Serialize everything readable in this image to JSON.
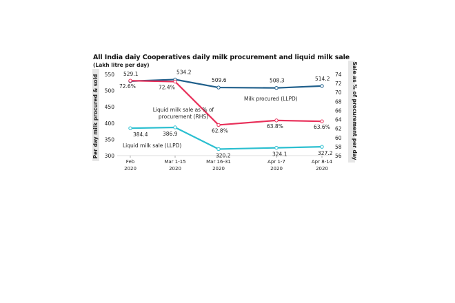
{
  "chart_data": {
    "type": "line",
    "title": "All India daiy Cooperatives daily milk procurement and liquid milk sale",
    "subtitle": "(Lakh litre per day)",
    "ylabel": "Per day milk procured & sold",
    "y2label": "Sale as % of procurement per day",
    "categories": [
      "Feb\n2020",
      "Mar 1-15\n2020",
      "Mar 16-31\n2020",
      "Apr 1-7\n2020",
      "Apr 8-14\n2020"
    ],
    "ylim": [
      300,
      550
    ],
    "yticks": [
      300,
      350,
      400,
      450,
      500,
      550
    ],
    "y2lim": [
      56,
      74
    ],
    "y2ticks": [
      56,
      58,
      60,
      62,
      64,
      66,
      68,
      70,
      72,
      74
    ],
    "series": [
      {
        "name": "Milk procured (LLPD)",
        "axis": "left",
        "color": "#1f5f8b",
        "values": [
          529.1,
          534.2,
          509.6,
          508.3,
          514.2
        ],
        "labels": [
          "529.1",
          "534.2",
          "509.6",
          "508.3",
          "514.2"
        ]
      },
      {
        "name": "Liquid milk sale as % of procurement (RHS)",
        "axis": "right",
        "color": "#e8305a",
        "values": [
          72.6,
          72.4,
          62.8,
          63.8,
          63.6
        ],
        "labels": [
          "72.6%",
          "72.4%",
          "62.8%",
          "63.8%",
          "63.6%"
        ]
      },
      {
        "name": "Liquid milk sale (LLPD)",
        "axis": "left",
        "color": "#2bbfd0",
        "values": [
          384.4,
          386.9,
          320.2,
          324.1,
          327.2
        ],
        "labels": [
          "384.4",
          "386.9",
          "320.2",
          "324.1",
          "327.2"
        ]
      }
    ],
    "grid": false,
    "legend": "inline labels"
  }
}
